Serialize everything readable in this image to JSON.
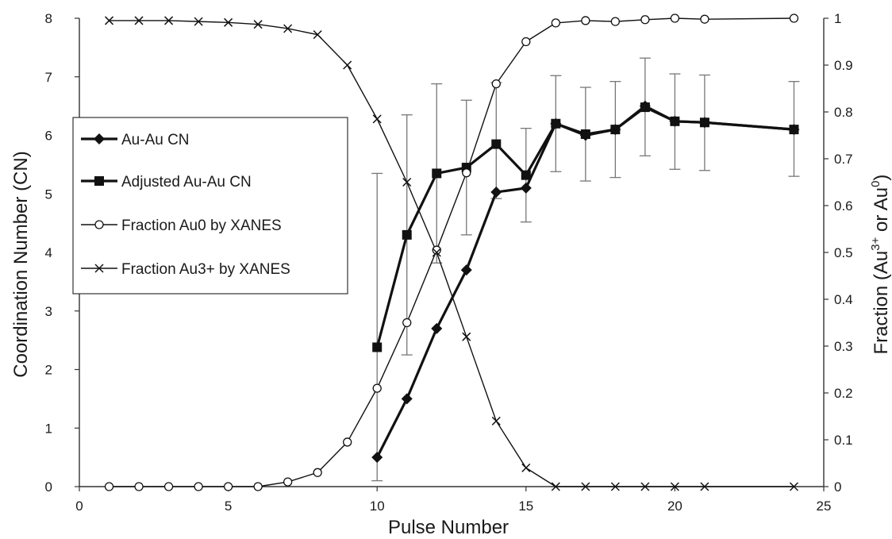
{
  "chart_data": {
    "type": "line",
    "xlabel": "Pulse Number",
    "ylabel_left": "Coordination Number (CN)",
    "ylabel_right": {
      "prefix": "Fraction (Au",
      "sup1": "3+",
      "mid": " or Au",
      "sup2": "0",
      "suffix": ")"
    },
    "xlim": [
      0,
      25
    ],
    "ylim_left": [
      0,
      8
    ],
    "ylim_right": [
      0,
      1
    ],
    "x_ticks": [
      "0",
      "5",
      "10",
      "15",
      "20",
      "25"
    ],
    "y_left_ticks": [
      "0",
      "1",
      "2",
      "3",
      "4",
      "5",
      "6",
      "7",
      "8"
    ],
    "y_right_ticks": [
      "0",
      "0.1",
      "0.2",
      "0.3",
      "0.4",
      "0.5",
      "0.6",
      "0.7",
      "0.8",
      "0.9",
      "1"
    ],
    "grid": false,
    "legend_position": "left-middle",
    "series": [
      {
        "name": "Au-Au CN",
        "axis": "left",
        "marker": "diamond",
        "line_width": "thick",
        "x": [
          10,
          11,
          12,
          13,
          14,
          15,
          16,
          17,
          18,
          19,
          20,
          21,
          24
        ],
        "y": [
          0.5,
          1.5,
          2.7,
          3.7,
          5.03,
          5.1,
          6.2,
          6.0,
          6.1,
          6.5,
          6.24,
          6.22,
          6.1
        ]
      },
      {
        "name": "Adjusted Au-Au CN",
        "axis": "left",
        "marker": "square",
        "line_width": "thick",
        "x": [
          10,
          11,
          12,
          13,
          14,
          15,
          16,
          17,
          18,
          19,
          20,
          21,
          24
        ],
        "y": [
          2.38,
          4.3,
          5.35,
          5.45,
          5.85,
          5.32,
          6.2,
          6.02,
          6.1,
          6.48,
          6.24,
          6.22,
          6.1
        ],
        "error_low": [
          0.1,
          2.25,
          3.82,
          4.3,
          4.92,
          4.52,
          5.38,
          5.22,
          5.28,
          5.65,
          5.42,
          5.4,
          5.3
        ],
        "error_high": [
          5.35,
          6.35,
          6.88,
          6.6,
          6.9,
          6.12,
          7.02,
          6.82,
          6.92,
          7.32,
          7.05,
          7.03,
          6.92
        ]
      },
      {
        "name": "Fraction Au0 by XANES",
        "axis": "right",
        "marker": "circle",
        "line_width": "thin",
        "x": [
          1,
          2,
          3,
          4,
          5,
          6,
          7,
          8,
          9,
          10,
          11,
          12,
          13,
          14,
          15,
          16,
          17,
          18,
          19,
          20,
          21,
          24
        ],
        "y": [
          0,
          0,
          0,
          0,
          0,
          0,
          0.01,
          0.03,
          0.095,
          0.21,
          0.35,
          0.505,
          0.67,
          0.86,
          0.95,
          0.99,
          0.995,
          0.993,
          0.997,
          1.0,
          0.998,
          1.0
        ]
      },
      {
        "name": "Fraction Au3+ by XANES",
        "axis": "right",
        "marker": "x",
        "line_width": "thin",
        "x": [
          1,
          2,
          3,
          4,
          5,
          6,
          7,
          8,
          9,
          10,
          11,
          12,
          13,
          14,
          15,
          16,
          17,
          18,
          19,
          20,
          21,
          24
        ],
        "y": [
          0.995,
          0.995,
          0.995,
          0.993,
          0.991,
          0.987,
          0.978,
          0.965,
          0.9,
          0.785,
          0.65,
          0.5,
          0.32,
          0.14,
          0.04,
          0,
          0,
          0,
          0,
          0,
          0,
          0
        ]
      }
    ]
  }
}
